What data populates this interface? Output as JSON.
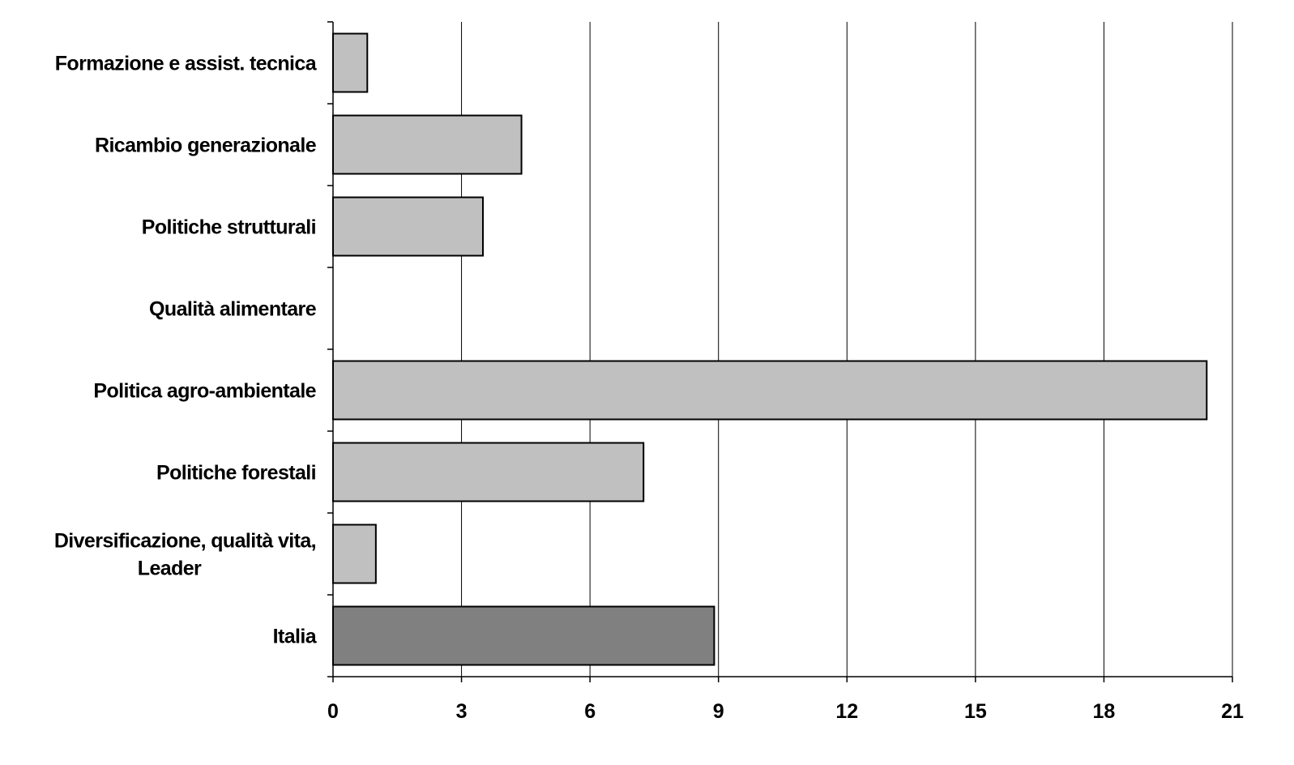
{
  "chart_data": {
    "type": "bar",
    "orientation": "horizontal",
    "categories": [
      "Formazione e assist. tecnica",
      "Ricambio generazionale",
      "Politiche strutturali",
      "Qualità alimentare",
      "Politica agro-ambientale",
      "Politiche forestali",
      "Diversificazione, qualità  vita, Leader",
      "Italia"
    ],
    "category_label_lines": [
      [
        "Formazione e assist. tecnica"
      ],
      [
        "Ricambio generazionale"
      ],
      [
        "Politiche strutturali"
      ],
      [
        "Qualità alimentare"
      ],
      [
        "Politica agro-ambientale"
      ],
      [
        "Politiche forestali"
      ],
      [
        "Diversificazione, qualità  vita,",
        "Leader"
      ],
      [
        "Italia"
      ]
    ],
    "values": [
      0.8,
      4.4,
      3.5,
      0,
      20.4,
      7.25,
      1.0,
      8.9
    ],
    "bar_colors": [
      "#c0c0c0",
      "#c0c0c0",
      "#c0c0c0",
      "#c0c0c0",
      "#c0c0c0",
      "#c0c0c0",
      "#c0c0c0",
      "#808080"
    ],
    "xlim": [
      0,
      21
    ],
    "xticks": [
      "0",
      "3",
      "6",
      "9",
      "12",
      "15",
      "18",
      "21"
    ],
    "xtick_values": [
      0,
      3,
      6,
      9,
      12,
      15,
      18,
      21
    ],
    "grid": "vertical",
    "title": "",
    "xlabel": "",
    "ylabel": ""
  }
}
